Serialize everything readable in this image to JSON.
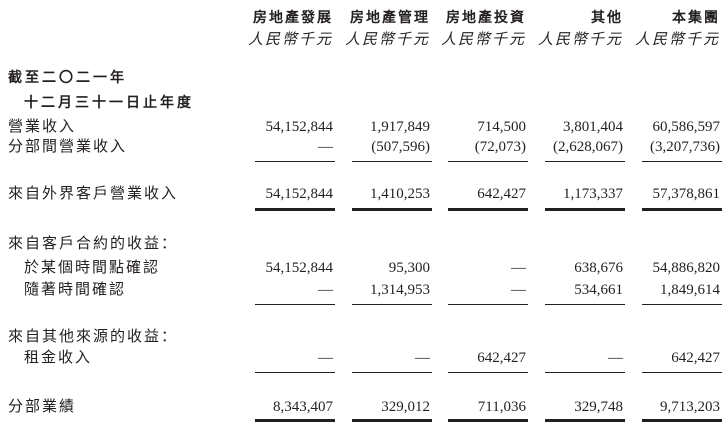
{
  "columns": [
    {
      "name": "房地產發展",
      "unit": "人民幣千元"
    },
    {
      "name": "房地產管理",
      "unit": "人民幣千元"
    },
    {
      "name": "房地產投資",
      "unit": "人民幣千元"
    },
    {
      "name": "其他",
      "unit": "人民幣千元"
    },
    {
      "name": "本集團",
      "unit": "人民幣千元"
    }
  ],
  "period": {
    "line1": "截至二〇二一年",
    "line2": "十二月三十一日止年度"
  },
  "rows": {
    "revenue": {
      "label": "營業收入",
      "values": [
        "54,152,844",
        "1,917,849",
        "714,500",
        "3,801,404",
        "60,586,597"
      ]
    },
    "inter_segment": {
      "label": "分部間營業收入",
      "values": [
        "—",
        "(507,596)",
        "(72,073)",
        "(2,628,067)",
        "(3,207,736)"
      ]
    },
    "external": {
      "label": "來自外界客戶營業收入",
      "values": [
        "54,152,844",
        "1,410,253",
        "642,427",
        "1,173,337",
        "57,378,861"
      ]
    },
    "contracts_heading": {
      "label": "來自客戶合約的收益："
    },
    "point_in_time": {
      "label": "於某個時間點確認",
      "values": [
        "54,152,844",
        "95,300",
        "—",
        "638,676",
        "54,886,820"
      ]
    },
    "over_time": {
      "label": "隨著時間確認",
      "values": [
        "—",
        "1,314,953",
        "—",
        "534,661",
        "1,849,614"
      ]
    },
    "other_heading": {
      "label": "來自其他來源的收益："
    },
    "rental": {
      "label": "租金收入",
      "values": [
        "—",
        "—",
        "642,427",
        "—",
        "642,427"
      ]
    },
    "segment_results": {
      "label": "分部業績",
      "values": [
        "8,343,407",
        "329,012",
        "711,036",
        "329,748",
        "9,713,203"
      ]
    }
  }
}
